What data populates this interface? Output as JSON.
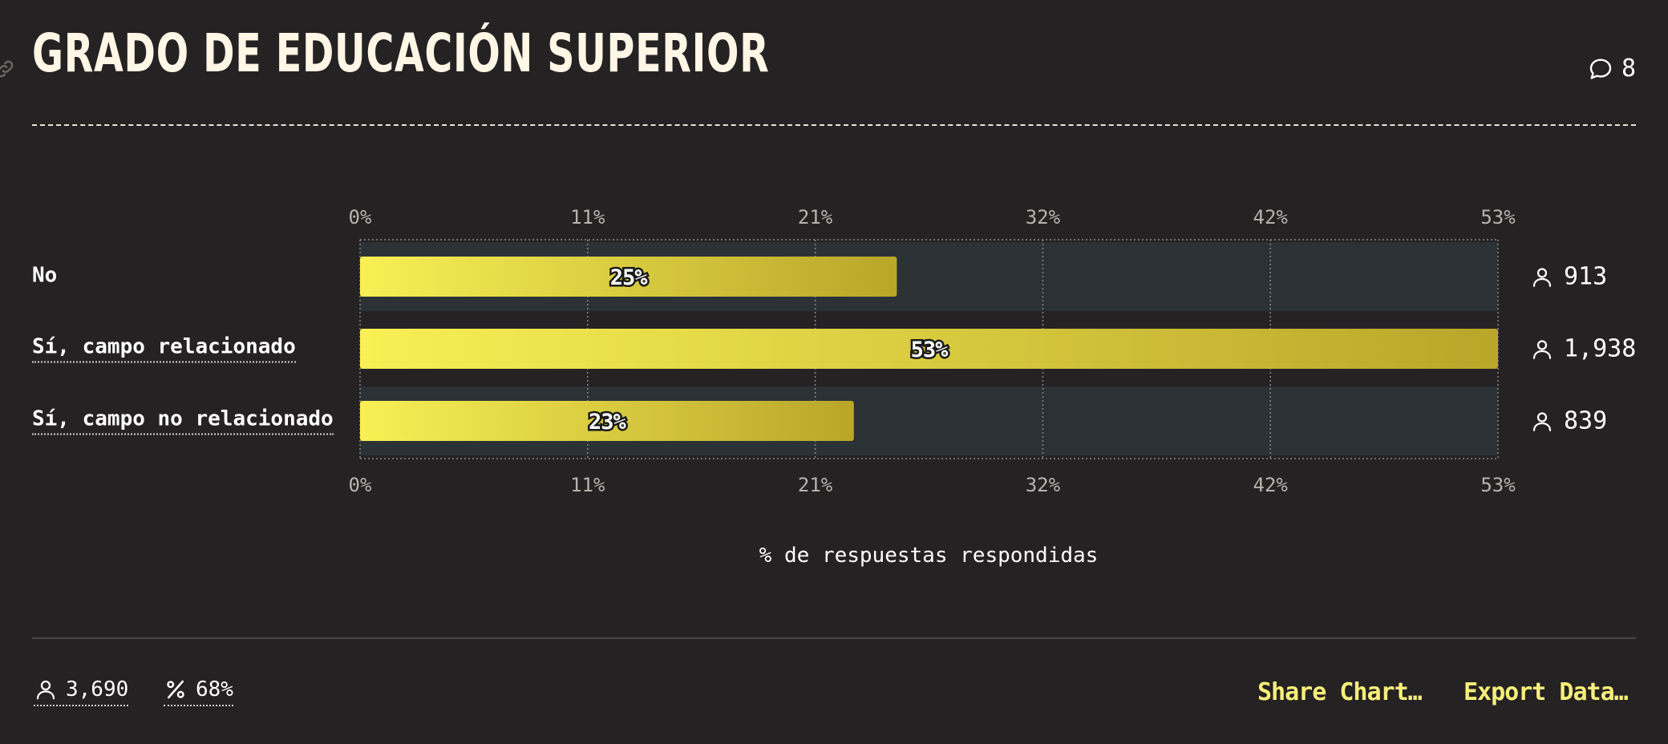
{
  "header": {
    "title": "GRADO DE EDUCACIÓN SUPERIOR",
    "comment_count": "8"
  },
  "chart_data": {
    "type": "bar",
    "orientation": "horizontal",
    "categories": [
      "No",
      "Sí, campo relacionado",
      "Sí, campo no relacionado"
    ],
    "values": [
      25,
      53,
      23
    ],
    "value_labels": [
      "25%",
      "53%",
      "23%"
    ],
    "counts": [
      "913",
      "1,938",
      "839"
    ],
    "x_ticks": [
      "0%",
      "11%",
      "21%",
      "32%",
      "42%",
      "53%"
    ],
    "xlim": [
      0,
      53
    ],
    "xlabel": "% de respuestas respondidas",
    "grid": true,
    "colors": {
      "bar_start": "#f8f055",
      "bar_end": "#b9a62a",
      "band": "#2b3235",
      "background": "#252223"
    }
  },
  "footer": {
    "total_respondents": "3,690",
    "response_rate": "68%",
    "share_label": "Share Chart…",
    "export_label": "Export Data…"
  },
  "icons": {
    "comment": "speech-bubble-icon",
    "person": "person-icon",
    "percent": "percent-icon",
    "link": "link-icon"
  }
}
